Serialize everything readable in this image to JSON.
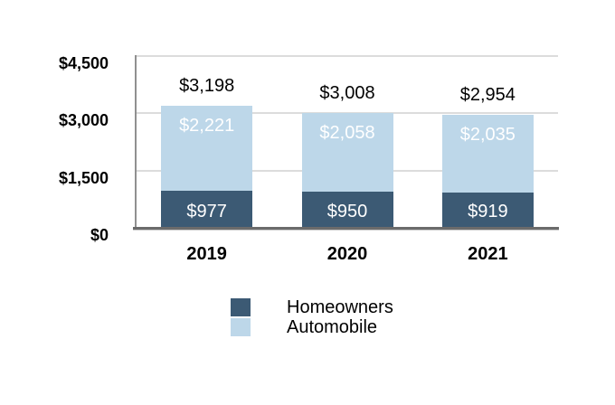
{
  "colors": {
    "homeowners": "#3C5A74",
    "automobile": "#BDD7E9",
    "gridline": "#DCDCDC",
    "y_axis_line": "#909090",
    "x_axis_line": "#6B6B6B",
    "label_dark": "#000000",
    "label_light": "#FFFFFF"
  },
  "chart_data": {
    "type": "bar",
    "subtype": "stacked-vertical",
    "title": "",
    "xlabel": "",
    "ylabel": "",
    "grid": true,
    "legend_position": "bottom",
    "categories": [
      "2019",
      "2020",
      "2021"
    ],
    "series": [
      {
        "name": "Homeowners",
        "color": "#3C5A74",
        "values": [
          977,
          950,
          919
        ],
        "labels": [
          "$977",
          "$950",
          "$919"
        ]
      },
      {
        "name": "Automobile",
        "color": "#BDD7E9",
        "values": [
          2221,
          2058,
          2035
        ],
        "labels": [
          "$2,221",
          "$2,058",
          "$2,035"
        ]
      }
    ],
    "totals": [
      3198,
      3008,
      2954
    ],
    "total_labels": [
      "$3,198",
      "$3,008",
      "$2,954"
    ],
    "y_axis": {
      "min": 0,
      "max": 4500,
      "ticks": [
        {
          "value": 0,
          "label": "$0"
        },
        {
          "value": 1500,
          "label": "$1,500"
        },
        {
          "value": 3000,
          "label": "$3,000"
        },
        {
          "value": 4500,
          "label": "$4,500"
        }
      ]
    },
    "legend": [
      {
        "label": "Homeowners",
        "color": "#3C5A74"
      },
      {
        "label": "Automobile",
        "color": "#BDD7E9"
      }
    ]
  }
}
